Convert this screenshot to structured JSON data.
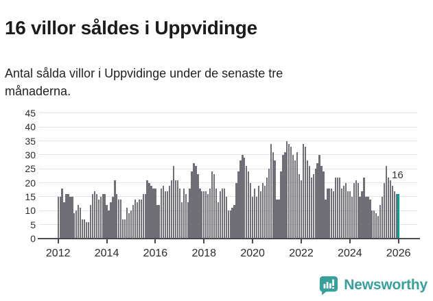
{
  "title": "16 villor såldes i Uppvidinge",
  "subtitle_lines": {
    "0": "Antal sålda villor i Uppvidinge under de senaste tre",
    "1": "månaderna."
  },
  "annotation": {
    "label": "16"
  },
  "branding": {
    "logo_text": "Newsworthy"
  },
  "colors": {
    "bar": "#706f78",
    "highlight": "#00a19e",
    "grid": "#e3e3e3",
    "axis": "#4a4a4a",
    "tick_text": "#2b2b2b",
    "logo": "#36a099"
  },
  "chart_data": {
    "type": "bar",
    "title": "16 villor såldes i Uppvidinge",
    "subtitle": "Antal sålda villor i Uppvidinge under de senaste tre månaderna.",
    "frequency": "monthly",
    "x_start_month": "2012-01",
    "x_end_month": "2026-01",
    "x_tick_labels": [
      "2012",
      "2014",
      "2016",
      "2018",
      "2020",
      "2022",
      "2024",
      "2026"
    ],
    "y_ticks": [
      0,
      5,
      10,
      15,
      20,
      25,
      30,
      35,
      40,
      45
    ],
    "ylim": [
      0,
      45
    ],
    "grid": true,
    "legend": false,
    "highlight_last_value": 16,
    "values": [
      15,
      15,
      18,
      13,
      16,
      16,
      15,
      15,
      9,
      10,
      12,
      11,
      7,
      7,
      6,
      6,
      12,
      16,
      17,
      16,
      14,
      15,
      16,
      16,
      12,
      10,
      13,
      15,
      21,
      16,
      14,
      14,
      7,
      7,
      11,
      9,
      10,
      12,
      14,
      13,
      14,
      14,
      16,
      16,
      21,
      20,
      19,
      18,
      18,
      12,
      12,
      18,
      19,
      17,
      17,
      19,
      21,
      26,
      21,
      21,
      18,
      13,
      18,
      16,
      13,
      18,
      24,
      27,
      26,
      23,
      18,
      17,
      17,
      17,
      16,
      18,
      24,
      23,
      18,
      13,
      17,
      18,
      18,
      15,
      10,
      10,
      11,
      12,
      20,
      24,
      28,
      30,
      29,
      26,
      24,
      20,
      15,
      18,
      15,
      19,
      17,
      20,
      19,
      22,
      25,
      34,
      31,
      28,
      14,
      14,
      24,
      30,
      31,
      35,
      34,
      33,
      30,
      28,
      31,
      23,
      21,
      34,
      33,
      28,
      26,
      22,
      23,
      25,
      27,
      30,
      26,
      24,
      14,
      18,
      18,
      18,
      17,
      22,
      22,
      22,
      18,
      19,
      20,
      17,
      17,
      15,
      20,
      21,
      20,
      15,
      17,
      22,
      15,
      15,
      14,
      10,
      10,
      9,
      8,
      12,
      15,
      20,
      26,
      22,
      21,
      19,
      17,
      16,
      16
    ]
  }
}
